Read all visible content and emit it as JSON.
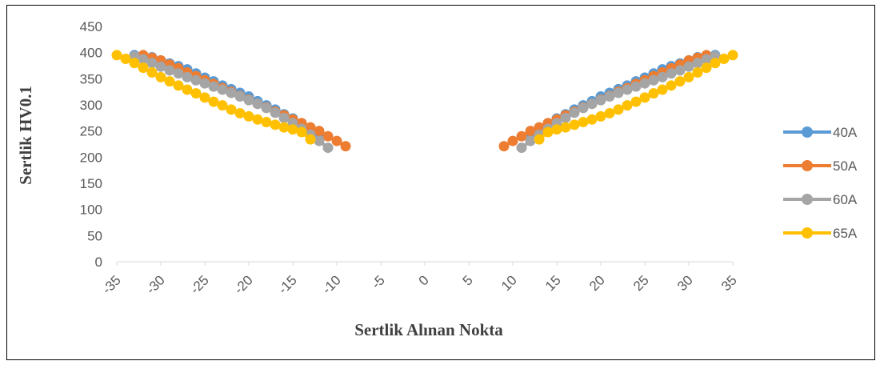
{
  "chart_data": {
    "type": "scatter",
    "xlabel": "Sertlik  Alınan Nokta",
    "ylabel": "Sertlik HV0.1",
    "xlim": [
      -35,
      35
    ],
    "ylim": [
      0,
      450
    ],
    "xticks": [
      -35,
      -30,
      -25,
      -20,
      -15,
      -10,
      -5,
      0,
      5,
      10,
      15,
      20,
      25,
      30,
      35
    ],
    "yticks": [
      0,
      50,
      100,
      150,
      200,
      250,
      300,
      350,
      400,
      450
    ],
    "grid": false,
    "legend_position": "right",
    "series": [
      {
        "name": "40A",
        "color": "#5b9bd5",
        "segments": [
          [
            [
              -33,
              395
            ],
            [
              -32,
              393
            ],
            [
              -31,
              391
            ],
            [
              -30,
              385
            ],
            [
              -29,
              379
            ],
            [
              -28,
              374
            ],
            [
              -27,
              368
            ],
            [
              -26,
              360
            ],
            [
              -25,
              352
            ],
            [
              -24,
              345
            ],
            [
              -23,
              337
            ],
            [
              -22,
              330
            ],
            [
              -21,
              323
            ],
            [
              -20,
              316
            ],
            [
              -19,
              307
            ],
            [
              -18,
              299
            ],
            [
              -17,
              291
            ],
            [
              -16,
              282
            ],
            [
              -15,
              274
            ],
            [
              -14,
              265
            ],
            [
              -13,
              256
            ],
            [
              -12,
              247
            ]
          ],
          [
            [
              12,
              247
            ],
            [
              13,
              256
            ],
            [
              14,
              265
            ],
            [
              15,
              274
            ],
            [
              16,
              282
            ],
            [
              17,
              291
            ],
            [
              18,
              299
            ],
            [
              19,
              307
            ],
            [
              20,
              316
            ],
            [
              21,
              323
            ],
            [
              22,
              330
            ],
            [
              23,
              337
            ],
            [
              24,
              345
            ],
            [
              25,
              352
            ],
            [
              26,
              360
            ],
            [
              27,
              368
            ],
            [
              28,
              374
            ],
            [
              29,
              379
            ],
            [
              30,
              385
            ],
            [
              31,
              391
            ],
            [
              32,
              393
            ],
            [
              33,
              395
            ]
          ]
        ]
      },
      {
        "name": "50A",
        "color": "#ed7d31",
        "segments": [
          [
            [
              -32,
              395
            ],
            [
              -31,
              390
            ],
            [
              -30,
              385
            ],
            [
              -29,
              377
            ],
            [
              -28,
              370
            ],
            [
              -27,
              362
            ],
            [
              -26,
              355
            ],
            [
              -25,
              347
            ],
            [
              -24,
              340
            ],
            [
              -23,
              332
            ],
            [
              -22,
              325
            ],
            [
              -21,
              317
            ],
            [
              -20,
              310
            ],
            [
              -19,
              302
            ],
            [
              -18,
              295
            ],
            [
              -17,
              287
            ],
            [
              -16,
              280
            ],
            [
              -15,
              272
            ],
            [
              -14,
              265
            ],
            [
              -13,
              257
            ],
            [
              -12,
              250
            ],
            [
              -11,
              240
            ],
            [
              -10,
              231
            ],
            [
              -9,
              221
            ]
          ],
          [
            [
              9,
              221
            ],
            [
              10,
              231
            ],
            [
              11,
              240
            ],
            [
              12,
              250
            ],
            [
              13,
              257
            ],
            [
              14,
              265
            ],
            [
              15,
              272
            ],
            [
              16,
              280
            ],
            [
              17,
              287
            ],
            [
              18,
              295
            ],
            [
              19,
              302
            ],
            [
              20,
              310
            ],
            [
              21,
              317
            ],
            [
              22,
              325
            ],
            [
              23,
              332
            ],
            [
              24,
              340
            ],
            [
              25,
              347
            ],
            [
              26,
              355
            ],
            [
              27,
              362
            ],
            [
              28,
              370
            ],
            [
              29,
              377
            ],
            [
              30,
              385
            ],
            [
              31,
              390
            ],
            [
              32,
              395
            ]
          ]
        ]
      },
      {
        "name": "60A",
        "color": "#a5a5a5",
        "segments": [
          [
            [
              -33,
              393
            ],
            [
              -32,
              387
            ],
            [
              -31,
              380
            ],
            [
              -30,
              373
            ],
            [
              -29,
              366
            ],
            [
              -28,
              360
            ],
            [
              -27,
              353
            ],
            [
              -26,
              347
            ],
            [
              -25,
              341
            ],
            [
              -24,
              335
            ],
            [
              -23,
              329
            ],
            [
              -22,
              323
            ],
            [
              -21,
              316
            ],
            [
              -20,
              309
            ],
            [
              -19,
              302
            ],
            [
              -18,
              294
            ],
            [
              -17,
              285
            ],
            [
              -16,
              275
            ],
            [
              -15,
              265
            ],
            [
              -14,
              254
            ],
            [
              -13,
              243
            ],
            [
              -12,
              231
            ],
            [
              -11,
              218
            ]
          ],
          [
            [
              11,
              218
            ],
            [
              12,
              231
            ],
            [
              13,
              243
            ],
            [
              14,
              254
            ],
            [
              15,
              265
            ],
            [
              16,
              275
            ],
            [
              17,
              285
            ],
            [
              18,
              294
            ],
            [
              19,
              302
            ],
            [
              20,
              309
            ],
            [
              21,
              316
            ],
            [
              22,
              323
            ],
            [
              23,
              329
            ],
            [
              24,
              335
            ],
            [
              25,
              341
            ],
            [
              26,
              347
            ],
            [
              27,
              353
            ],
            [
              28,
              360
            ],
            [
              29,
              366
            ],
            [
              30,
              373
            ],
            [
              31,
              380
            ],
            [
              32,
              387
            ],
            [
              33,
              393
            ]
          ]
        ]
      },
      {
        "name": "65A",
        "color": "#ffc000",
        "segments": [
          [
            [
              -35,
              395
            ],
            [
              -34,
              388
            ],
            [
              -33,
              380
            ],
            [
              -32,
              371
            ],
            [
              -31,
              362
            ],
            [
              -30,
              353
            ],
            [
              -29,
              345
            ],
            [
              -28,
              337
            ],
            [
              -27,
              329
            ],
            [
              -26,
              322
            ],
            [
              -25,
              314
            ],
            [
              -24,
              306
            ],
            [
              -23,
              299
            ],
            [
              -22,
              291
            ],
            [
              -21,
              284
            ],
            [
              -20,
              278
            ],
            [
              -19,
              272
            ],
            [
              -18,
              267
            ],
            [
              -17,
              262
            ],
            [
              -16,
              257
            ],
            [
              -15,
              253
            ],
            [
              -14,
              248
            ],
            [
              -13,
              234
            ]
          ],
          [
            [
              13,
              234
            ],
            [
              14,
              248
            ],
            [
              15,
              253
            ],
            [
              16,
              257
            ],
            [
              17,
              262
            ],
            [
              18,
              267
            ],
            [
              19,
              272
            ],
            [
              20,
              278
            ],
            [
              21,
              284
            ],
            [
              22,
              291
            ],
            [
              23,
              299
            ],
            [
              24,
              306
            ],
            [
              25,
              314
            ],
            [
              26,
              322
            ],
            [
              27,
              329
            ],
            [
              28,
              337
            ],
            [
              29,
              345
            ],
            [
              30,
              353
            ],
            [
              31,
              362
            ],
            [
              32,
              371
            ],
            [
              33,
              380
            ],
            [
              34,
              388
            ],
            [
              35,
              395
            ]
          ]
        ]
      }
    ]
  }
}
